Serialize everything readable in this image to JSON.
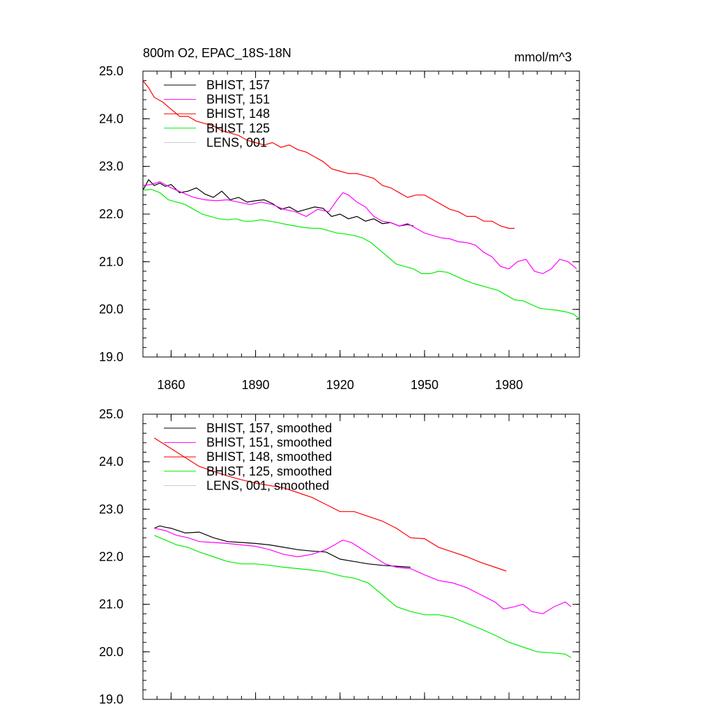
{
  "header": {
    "title": "800m O2, EPAC_18S-18N",
    "units": "mmol/m^3"
  },
  "chart_data": [
    {
      "type": "line",
      "xlim": [
        1850,
        2005
      ],
      "ylim": [
        19.0,
        25.0
      ],
      "x_ticks": [
        1860,
        1890,
        1920,
        1950,
        1980
      ],
      "x_tick_labels": [
        "1860",
        "1890",
        "1920",
        "1950",
        "1980"
      ],
      "y_ticks": [
        19.0,
        20.0,
        21.0,
        22.0,
        23.0,
        24.0,
        25.0
      ],
      "y_tick_labels": [
        "19.0",
        "20.0",
        "21.0",
        "22.0",
        "23.0",
        "24.0",
        "25.0"
      ],
      "legend_position": "top-left",
      "series": [
        {
          "name": "BHIST, 157",
          "color": "#000000",
          "x": [
            1850,
            1852,
            1854,
            1856,
            1858,
            1860,
            1863,
            1866,
            1869,
            1872,
            1875,
            1878,
            1881,
            1884,
            1887,
            1890,
            1893,
            1896,
            1899,
            1902,
            1905,
            1908,
            1911,
            1914,
            1917,
            1920,
            1923,
            1926,
            1929,
            1932,
            1935,
            1938,
            1941,
            1944,
            1946
          ],
          "y": [
            22.5,
            22.72,
            22.6,
            22.65,
            22.58,
            22.62,
            22.45,
            22.48,
            22.55,
            22.42,
            22.35,
            22.48,
            22.3,
            22.35,
            22.25,
            22.28,
            22.3,
            22.22,
            22.1,
            22.15,
            22.05,
            22.1,
            22.15,
            22.12,
            21.95,
            22.0,
            21.9,
            21.95,
            21.85,
            21.9,
            21.8,
            21.82,
            21.75,
            21.78,
            21.75
          ]
        },
        {
          "name": "BHIST, 151",
          "color": "#ff00ff",
          "x": [
            1850,
            1853,
            1856,
            1860,
            1864,
            1868,
            1872,
            1876,
            1880,
            1884,
            1888,
            1892,
            1896,
            1900,
            1904,
            1908,
            1912,
            1916,
            1919,
            1921,
            1923,
            1926,
            1929,
            1932,
            1935,
            1938,
            1941,
            1944,
            1947,
            1950,
            1953,
            1956,
            1959,
            1962,
            1965,
            1968,
            1971,
            1974,
            1977,
            1980,
            1983,
            1986,
            1989,
            1992,
            1995,
            1998,
            2001,
            2004
          ],
          "y": [
            22.6,
            22.62,
            22.68,
            22.55,
            22.45,
            22.35,
            22.3,
            22.28,
            22.3,
            22.25,
            22.2,
            22.25,
            22.2,
            22.1,
            22.05,
            21.95,
            22.1,
            22.05,
            22.3,
            22.45,
            22.4,
            22.25,
            22.15,
            21.95,
            21.85,
            21.82,
            21.75,
            21.8,
            21.7,
            21.6,
            21.55,
            21.5,
            21.48,
            21.42,
            21.4,
            21.35,
            21.2,
            21.1,
            20.9,
            20.85,
            21.0,
            21.05,
            20.8,
            20.75,
            20.85,
            21.05,
            21.0,
            20.85
          ]
        },
        {
          "name": "BHIST, 148",
          "color": "#ff0000",
          "x": [
            1850,
            1852,
            1854,
            1857,
            1860,
            1863,
            1866,
            1869,
            1872,
            1875,
            1878,
            1881,
            1884,
            1887,
            1890,
            1893,
            1896,
            1899,
            1902,
            1905,
            1908,
            1911,
            1914,
            1917,
            1920,
            1923,
            1926,
            1929,
            1932,
            1935,
            1938,
            1941,
            1944,
            1947,
            1950,
            1953,
            1956,
            1959,
            1962,
            1965,
            1968,
            1971,
            1974,
            1977,
            1980,
            1982
          ],
          "y": [
            24.8,
            24.65,
            24.45,
            24.35,
            24.2,
            24.05,
            24.05,
            23.95,
            23.9,
            23.85,
            23.75,
            23.7,
            23.65,
            23.55,
            23.5,
            23.45,
            23.5,
            23.4,
            23.45,
            23.35,
            23.3,
            23.2,
            23.1,
            22.95,
            22.9,
            22.85,
            22.85,
            22.8,
            22.75,
            22.6,
            22.55,
            22.45,
            22.35,
            22.4,
            22.4,
            22.3,
            22.2,
            22.1,
            22.05,
            21.95,
            21.95,
            21.85,
            21.85,
            21.75,
            21.7,
            21.7
          ]
        },
        {
          "name": "BHIST, 125",
          "color": "#00ee00",
          "x": [
            1850,
            1853,
            1856,
            1859,
            1862,
            1865,
            1868,
            1871,
            1874,
            1877,
            1880,
            1883,
            1886,
            1889,
            1892,
            1895,
            1898,
            1901,
            1904,
            1907,
            1910,
            1913,
            1916,
            1919,
            1922,
            1925,
            1928,
            1931,
            1934,
            1937,
            1940,
            1943,
            1946,
            1949,
            1952,
            1955,
            1958,
            1961,
            1964,
            1967,
            1970,
            1973,
            1976,
            1979,
            1982,
            1985,
            1988,
            1991,
            1994,
            1997,
            2000,
            2003,
            2005
          ],
          "y": [
            22.5,
            22.52,
            22.45,
            22.3,
            22.25,
            22.2,
            22.1,
            22.0,
            21.95,
            21.9,
            21.88,
            21.9,
            21.85,
            21.85,
            21.88,
            21.85,
            21.82,
            21.78,
            21.75,
            21.72,
            21.7,
            21.7,
            21.65,
            21.6,
            21.58,
            21.55,
            21.5,
            21.4,
            21.25,
            21.1,
            20.95,
            20.9,
            20.85,
            20.75,
            20.75,
            20.8,
            20.78,
            20.7,
            20.62,
            20.55,
            20.5,
            20.45,
            20.4,
            20.3,
            20.2,
            20.18,
            20.1,
            20.02,
            20.0,
            19.98,
            19.95,
            19.9,
            19.8
          ]
        },
        {
          "name": "LENS, 001",
          "color": "#c8c8c8",
          "x": [],
          "y": []
        }
      ]
    },
    {
      "type": "line",
      "xlim": [
        1850,
        2005
      ],
      "ylim": [
        19.0,
        25.0
      ],
      "x_ticks": [
        1860,
        1890,
        1920,
        1950,
        1980
      ],
      "y_ticks": [
        19.0,
        20.0,
        21.0,
        22.0,
        23.0,
        24.0,
        25.0
      ],
      "y_tick_labels": [
        "19.0",
        "20.0",
        "21.0",
        "22.0",
        "23.0",
        "24.0",
        "25.0"
      ],
      "legend_position": "top-left",
      "series": [
        {
          "name": "BHIST, 157, smoothed",
          "color": "#000000",
          "x": [
            1854,
            1856,
            1858,
            1860,
            1865,
            1870,
            1875,
            1880,
            1885,
            1890,
            1895,
            1900,
            1905,
            1910,
            1915,
            1920,
            1925,
            1930,
            1935,
            1940,
            1945
          ],
          "y": [
            22.6,
            22.65,
            22.62,
            22.6,
            22.5,
            22.52,
            22.4,
            22.32,
            22.3,
            22.28,
            22.25,
            22.2,
            22.15,
            22.12,
            22.1,
            21.95,
            21.9,
            21.85,
            21.82,
            21.8,
            21.78
          ]
        },
        {
          "name": "BHIST, 151, smoothed",
          "color": "#ff00ff",
          "x": [
            1854,
            1858,
            1862,
            1866,
            1870,
            1875,
            1880,
            1885,
            1890,
            1895,
            1900,
            1905,
            1910,
            1915,
            1918,
            1921,
            1924,
            1928,
            1932,
            1936,
            1940,
            1945,
            1950,
            1955,
            1960,
            1965,
            1970,
            1975,
            1978,
            1982,
            1985,
            1988,
            1992,
            1996,
            2000,
            2002
          ],
          "y": [
            22.6,
            22.55,
            22.45,
            22.4,
            22.32,
            22.3,
            22.28,
            22.25,
            22.22,
            22.15,
            22.05,
            22.0,
            22.05,
            22.15,
            22.25,
            22.35,
            22.3,
            22.15,
            22.0,
            21.85,
            21.78,
            21.75,
            21.62,
            21.5,
            21.45,
            21.35,
            21.2,
            21.05,
            20.9,
            20.95,
            21.0,
            20.85,
            20.8,
            20.95,
            21.05,
            20.95
          ]
        },
        {
          "name": "BHIST, 148, smoothed",
          "color": "#ff0000",
          "x": [
            1854,
            1858,
            1862,
            1866,
            1870,
            1875,
            1880,
            1885,
            1890,
            1895,
            1900,
            1905,
            1910,
            1915,
            1920,
            1925,
            1930,
            1935,
            1940,
            1945,
            1950,
            1955,
            1960,
            1965,
            1970,
            1975,
            1979
          ],
          "y": [
            24.5,
            24.35,
            24.2,
            24.05,
            23.9,
            23.8,
            23.7,
            23.62,
            23.55,
            23.5,
            23.45,
            23.35,
            23.25,
            23.1,
            22.95,
            22.95,
            22.85,
            22.75,
            22.6,
            22.4,
            22.38,
            22.2,
            22.1,
            22.0,
            21.88,
            21.78,
            21.7
          ]
        },
        {
          "name": "BHIST, 125, smoothed",
          "color": "#00ee00",
          "x": [
            1854,
            1858,
            1862,
            1866,
            1870,
            1875,
            1880,
            1885,
            1890,
            1895,
            1900,
            1905,
            1910,
            1915,
            1920,
            1925,
            1930,
            1935,
            1940,
            1945,
            1950,
            1955,
            1960,
            1965,
            1970,
            1975,
            1980,
            1985,
            1990,
            1995,
            2000,
            2002
          ],
          "y": [
            22.45,
            22.35,
            22.25,
            22.2,
            22.1,
            22.0,
            21.9,
            21.85,
            21.85,
            21.82,
            21.78,
            21.75,
            21.72,
            21.68,
            21.6,
            21.55,
            21.45,
            21.2,
            20.95,
            20.85,
            20.78,
            20.78,
            20.72,
            20.6,
            20.48,
            20.35,
            20.2,
            20.1,
            20.0,
            19.98,
            19.95,
            19.88
          ]
        },
        {
          "name": "LENS, 001, smoothed",
          "color": "#c8c8c8",
          "x": [],
          "y": []
        }
      ]
    }
  ]
}
